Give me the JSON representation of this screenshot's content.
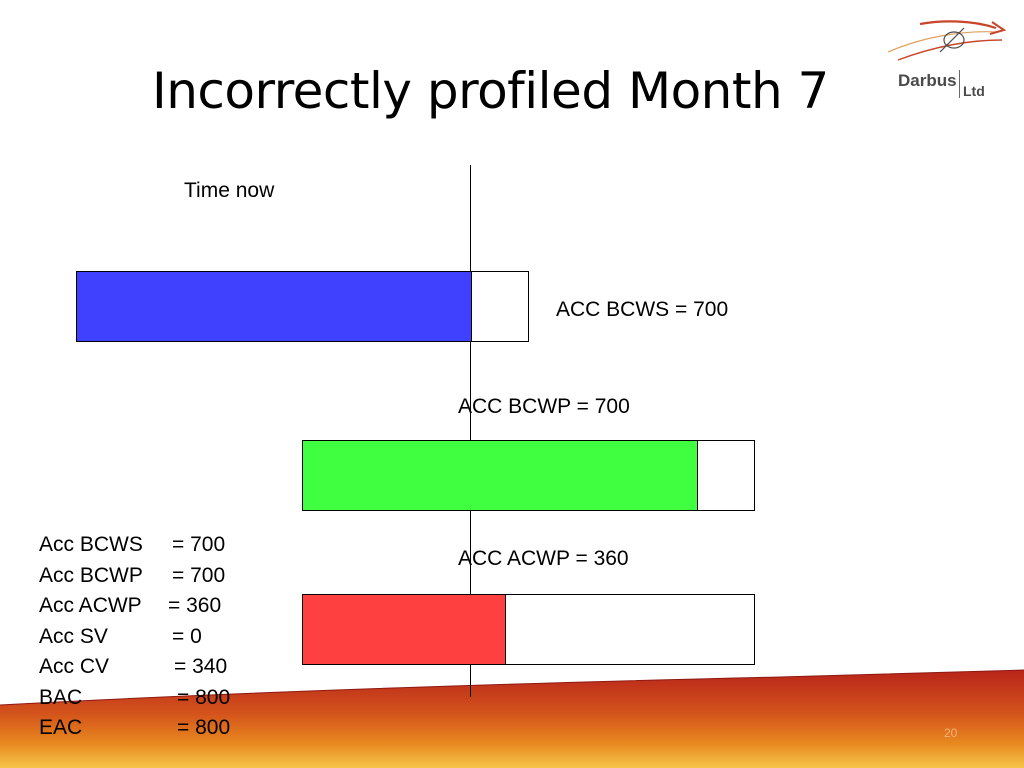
{
  "title": "Incorrectly profiled Month 7",
  "logo": {
    "name": "Darbus",
    "suffix": "Ltd"
  },
  "time_now_label": "Time now",
  "bars": [
    {
      "label": "ACC BCWS = 700",
      "value": 700,
      "total": 800,
      "color": "#4040FF"
    },
    {
      "label": "ACC BCWP = 700",
      "value": 700,
      "total": 800,
      "color": "#40FF40"
    },
    {
      "label": "ACC ACWP = 360",
      "value": 360,
      "total": 800,
      "color": "#FF4040"
    }
  ],
  "summary": [
    {
      "key": "Acc BCWS",
      "value": "= 700"
    },
    {
      "key": "Acc BCWP",
      "value": "= 700"
    },
    {
      "key": "Acc ACWP",
      "value": "= 360"
    },
    {
      "key": "Acc SV",
      "value": "= 0"
    },
    {
      "key": "Acc CV",
      "value": "= 340"
    },
    {
      "key": "BAC",
      "value": "= 800"
    },
    {
      "key": "EAC",
      "value": "= 800"
    }
  ],
  "page_number": "20",
  "colors": {
    "footer_red": "#B8241A",
    "footer_orange": "#E8891E",
    "footer_yellow": "#F6C54A"
  }
}
